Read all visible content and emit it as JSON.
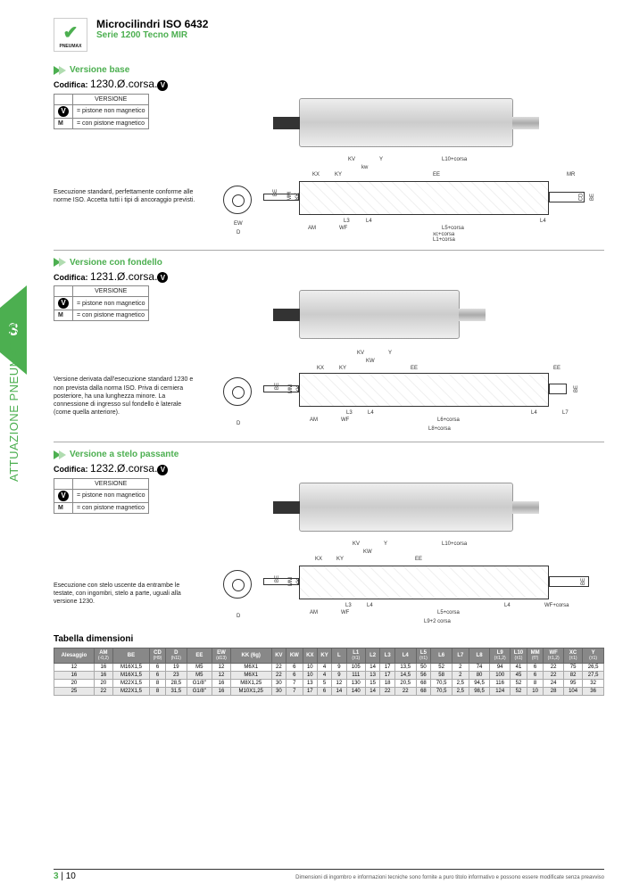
{
  "header": {
    "logo_text": "PNEUMAX",
    "title": "Microcilindri ISO 6432",
    "subtitle": "Serie 1200 Tecno MIR"
  },
  "sidebar": {
    "page_tab": "3",
    "vertical_label": "ATTUAZIONE PNEUMATICA"
  },
  "sections": {
    "base": {
      "title": "Versione base",
      "codifica_label": "Codifica:",
      "codifica_value": "1230.Ø.corsa.",
      "version_header": "VERSIONE",
      "version_rows": [
        {
          "sym": "",
          "text": "= pistone non magnetico"
        },
        {
          "sym": "M",
          "text": "= con pistone magnetico"
        }
      ],
      "description": "Esecuzione standard, perfettamente conforme alle norme ISO. Accetta tutti i tipi di ancoraggio previsti.",
      "dim_labels": [
        "KV",
        "Y",
        "L10+corsa",
        "kw",
        "KX",
        "KY",
        "EE",
        "MR",
        "BE",
        "MM",
        "KK",
        "CD",
        "BE",
        "EW",
        "L3",
        "L4",
        "L4",
        "D",
        "AM",
        "WF",
        "L5+corsa",
        "xc+corsa",
        "L1+corsa"
      ]
    },
    "fondello": {
      "title": "Versione con fondello",
      "codifica_label": "Codifica:",
      "codifica_value": "1231.Ø.corsa.",
      "version_header": "VERSIONE",
      "version_rows": [
        {
          "sym": "",
          "text": "= pistone non magnetico"
        },
        {
          "sym": "M",
          "text": "= con pistone magnetico"
        }
      ],
      "description": "Versione derivata dall'esecuzione standard 1230 e non prevista dalla norma ISO. Priva di cerniera posteriore, ha una lunghezza minore. La connessione di ingresso sul fondello è laterale (come quella anteriore).",
      "dim_labels": [
        "KV",
        "Y",
        "KW",
        "KX",
        "KY",
        "EE",
        "EE",
        "BE",
        "MM",
        "KK",
        "BE",
        "L3",
        "L4",
        "L4",
        "L7",
        "D",
        "AM",
        "WF",
        "L6+corsa",
        "L8+corsa"
      ]
    },
    "stelo": {
      "title": "Versione a stelo passante",
      "codifica_label": "Codifica:",
      "codifica_value": "1232.Ø.corsa.",
      "version_header": "VERSIONE",
      "version_rows": [
        {
          "sym": "",
          "text": "= pistone non magnetico"
        },
        {
          "sym": "M",
          "text": "= con pistone magnetico"
        }
      ],
      "description": "Esecuzione con stelo uscente da entrambe le testate, con ingombri, stelo a parte, uguali alla versione 1230.",
      "dim_labels": [
        "KV",
        "Y",
        "L10+corsa",
        "KW",
        "KX",
        "KY",
        "EE",
        "BE",
        "MM",
        "KK",
        "BE",
        "L3",
        "L4",
        "L4",
        "WF+corsa",
        "D",
        "AM",
        "WF",
        "L5+corsa",
        "L9+2 corsa"
      ]
    }
  },
  "dim_table": {
    "title": "Tabella dimensioni",
    "columns": [
      {
        "h": "Alesaggio",
        "s": ""
      },
      {
        "h": "AM",
        "s": "(-0,2)"
      },
      {
        "h": "BE",
        "s": ""
      },
      {
        "h": "CD",
        "s": "(H9)"
      },
      {
        "h": "D",
        "s": "(h11)"
      },
      {
        "h": "EE",
        "s": ""
      },
      {
        "h": "EW",
        "s": "(d13)"
      },
      {
        "h": "KK (6g)",
        "s": ""
      },
      {
        "h": "KV",
        "s": ""
      },
      {
        "h": "KW",
        "s": ""
      },
      {
        "h": "KX",
        "s": ""
      },
      {
        "h": "KY",
        "s": ""
      },
      {
        "h": "L",
        "s": ""
      },
      {
        "h": "L1",
        "s": "(±1)"
      },
      {
        "h": "L2",
        "s": ""
      },
      {
        "h": "L3",
        "s": ""
      },
      {
        "h": "L4",
        "s": ""
      },
      {
        "h": "L5",
        "s": "(±1)"
      },
      {
        "h": "L6",
        "s": ""
      },
      {
        "h": "L7",
        "s": ""
      },
      {
        "h": "L8",
        "s": ""
      },
      {
        "h": "L9",
        "s": "(±1,2)"
      },
      {
        "h": "L10",
        "s": "(±1)"
      },
      {
        "h": "MM",
        "s": "(f7)"
      },
      {
        "h": "WF",
        "s": "(±1,2)"
      },
      {
        "h": "XC",
        "s": "(±1)"
      },
      {
        "h": "Y",
        "s": "(±1)"
      }
    ],
    "rows": [
      [
        "12",
        "16",
        "M16X1,5",
        "6",
        "19",
        "M5",
        "12",
        "M6X1",
        "22",
        "6",
        "10",
        "4",
        "9",
        "105",
        "14",
        "17",
        "13,5",
        "50",
        "52",
        "2",
        "74",
        "94",
        "41",
        "6",
        "22",
        "75",
        "26,5"
      ],
      [
        "16",
        "16",
        "M16X1,5",
        "6",
        "23",
        "M5",
        "12",
        "M6X1",
        "22",
        "6",
        "10",
        "4",
        "9",
        "111",
        "13",
        "17",
        "14,5",
        "56",
        "58",
        "2",
        "80",
        "100",
        "45",
        "6",
        "22",
        "82",
        "27,5"
      ],
      [
        "20",
        "20",
        "M22X1,5",
        "8",
        "28,5",
        "G1/8\"",
        "16",
        "M8X1,25",
        "30",
        "7",
        "13",
        "5",
        "12",
        "130",
        "15",
        "18",
        "20,5",
        "68",
        "70,5",
        "2,5",
        "94,5",
        "116",
        "52",
        "8",
        "24",
        "95",
        "32"
      ],
      [
        "25",
        "22",
        "M22X1,5",
        "8",
        "31,5",
        "G1/8\"",
        "16",
        "M10X1,25",
        "30",
        "7",
        "17",
        "6",
        "14",
        "140",
        "14",
        "22",
        "22",
        "68",
        "70,5",
        "2,5",
        "98,5",
        "124",
        "52",
        "10",
        "28",
        "104",
        "36"
      ]
    ]
  },
  "footer": {
    "page_left_g": "3",
    "page_left_sep": " | ",
    "page_left_n": "10",
    "note": "Dimensioni di ingombro e informazioni tecniche sono fornite a puro titolo informativo e possono essere modificate senza preavviso"
  }
}
